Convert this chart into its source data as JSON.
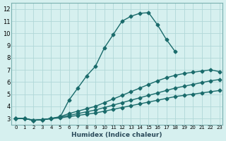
{
  "xlabel": "Humidex (Indice chaleur)",
  "ylabel": "",
  "bg_color": "#d6f0ef",
  "line_color": "#1a6b6b",
  "grid_color": "#b0d8d8",
  "xlim": [
    0,
    23
  ],
  "ylim": [
    2.5,
    12.5
  ],
  "xticks": [
    0,
    1,
    2,
    3,
    4,
    5,
    6,
    7,
    8,
    9,
    10,
    11,
    12,
    13,
    14,
    15,
    16,
    17,
    18,
    19,
    20,
    21,
    22,
    23
  ],
  "yticks": [
    3,
    4,
    5,
    6,
    7,
    8,
    9,
    10,
    11,
    12
  ],
  "line1_x": [
    0,
    1,
    2,
    3,
    4,
    5,
    6,
    7,
    8,
    9,
    10,
    11,
    12,
    13,
    14,
    15,
    16,
    17,
    18,
    19,
    20,
    21,
    22,
    23
  ],
  "line1_y": [
    3.0,
    3.0,
    2.85,
    2.9,
    3.0,
    3.1,
    4.5,
    5.5,
    6.5,
    7.3,
    8.8,
    9.9,
    11.0,
    11.4,
    11.65,
    11.7,
    10.7,
    9.5,
    8.5,
    null,
    null,
    null,
    null,
    null
  ],
  "line2_x": [
    0,
    1,
    2,
    3,
    4,
    5,
    6,
    7,
    8,
    9,
    10,
    11,
    12,
    13,
    14,
    15,
    16,
    17,
    18,
    19,
    20,
    21,
    22,
    23
  ],
  "line2_y": [
    3.0,
    3.0,
    2.85,
    2.9,
    3.0,
    3.15,
    3.4,
    3.6,
    3.8,
    4.0,
    4.3,
    4.6,
    4.9,
    5.2,
    5.5,
    5.8,
    6.1,
    6.35,
    6.55,
    6.7,
    6.8,
    6.9,
    7.0,
    6.85
  ],
  "line3_x": [
    0,
    1,
    2,
    3,
    4,
    5,
    6,
    7,
    8,
    9,
    10,
    11,
    12,
    13,
    14,
    15,
    16,
    17,
    18,
    19,
    20,
    21,
    22,
    23
  ],
  "line3_y": [
    3.0,
    3.0,
    2.85,
    2.9,
    3.0,
    3.1,
    3.25,
    3.4,
    3.55,
    3.7,
    3.9,
    4.1,
    4.3,
    4.5,
    4.7,
    4.9,
    5.1,
    5.3,
    5.5,
    5.65,
    5.8,
    5.95,
    6.1,
    6.2
  ],
  "line4_x": [
    0,
    1,
    2,
    3,
    4,
    5,
    6,
    7,
    8,
    9,
    10,
    11,
    12,
    13,
    14,
    15,
    16,
    17,
    18,
    19,
    20,
    21,
    22,
    23
  ],
  "line4_y": [
    3.0,
    3.0,
    2.85,
    2.9,
    3.0,
    3.05,
    3.15,
    3.25,
    3.35,
    3.45,
    3.6,
    3.75,
    3.9,
    4.05,
    4.2,
    4.35,
    4.5,
    4.65,
    4.8,
    4.9,
    5.0,
    5.1,
    5.2,
    5.3
  ]
}
